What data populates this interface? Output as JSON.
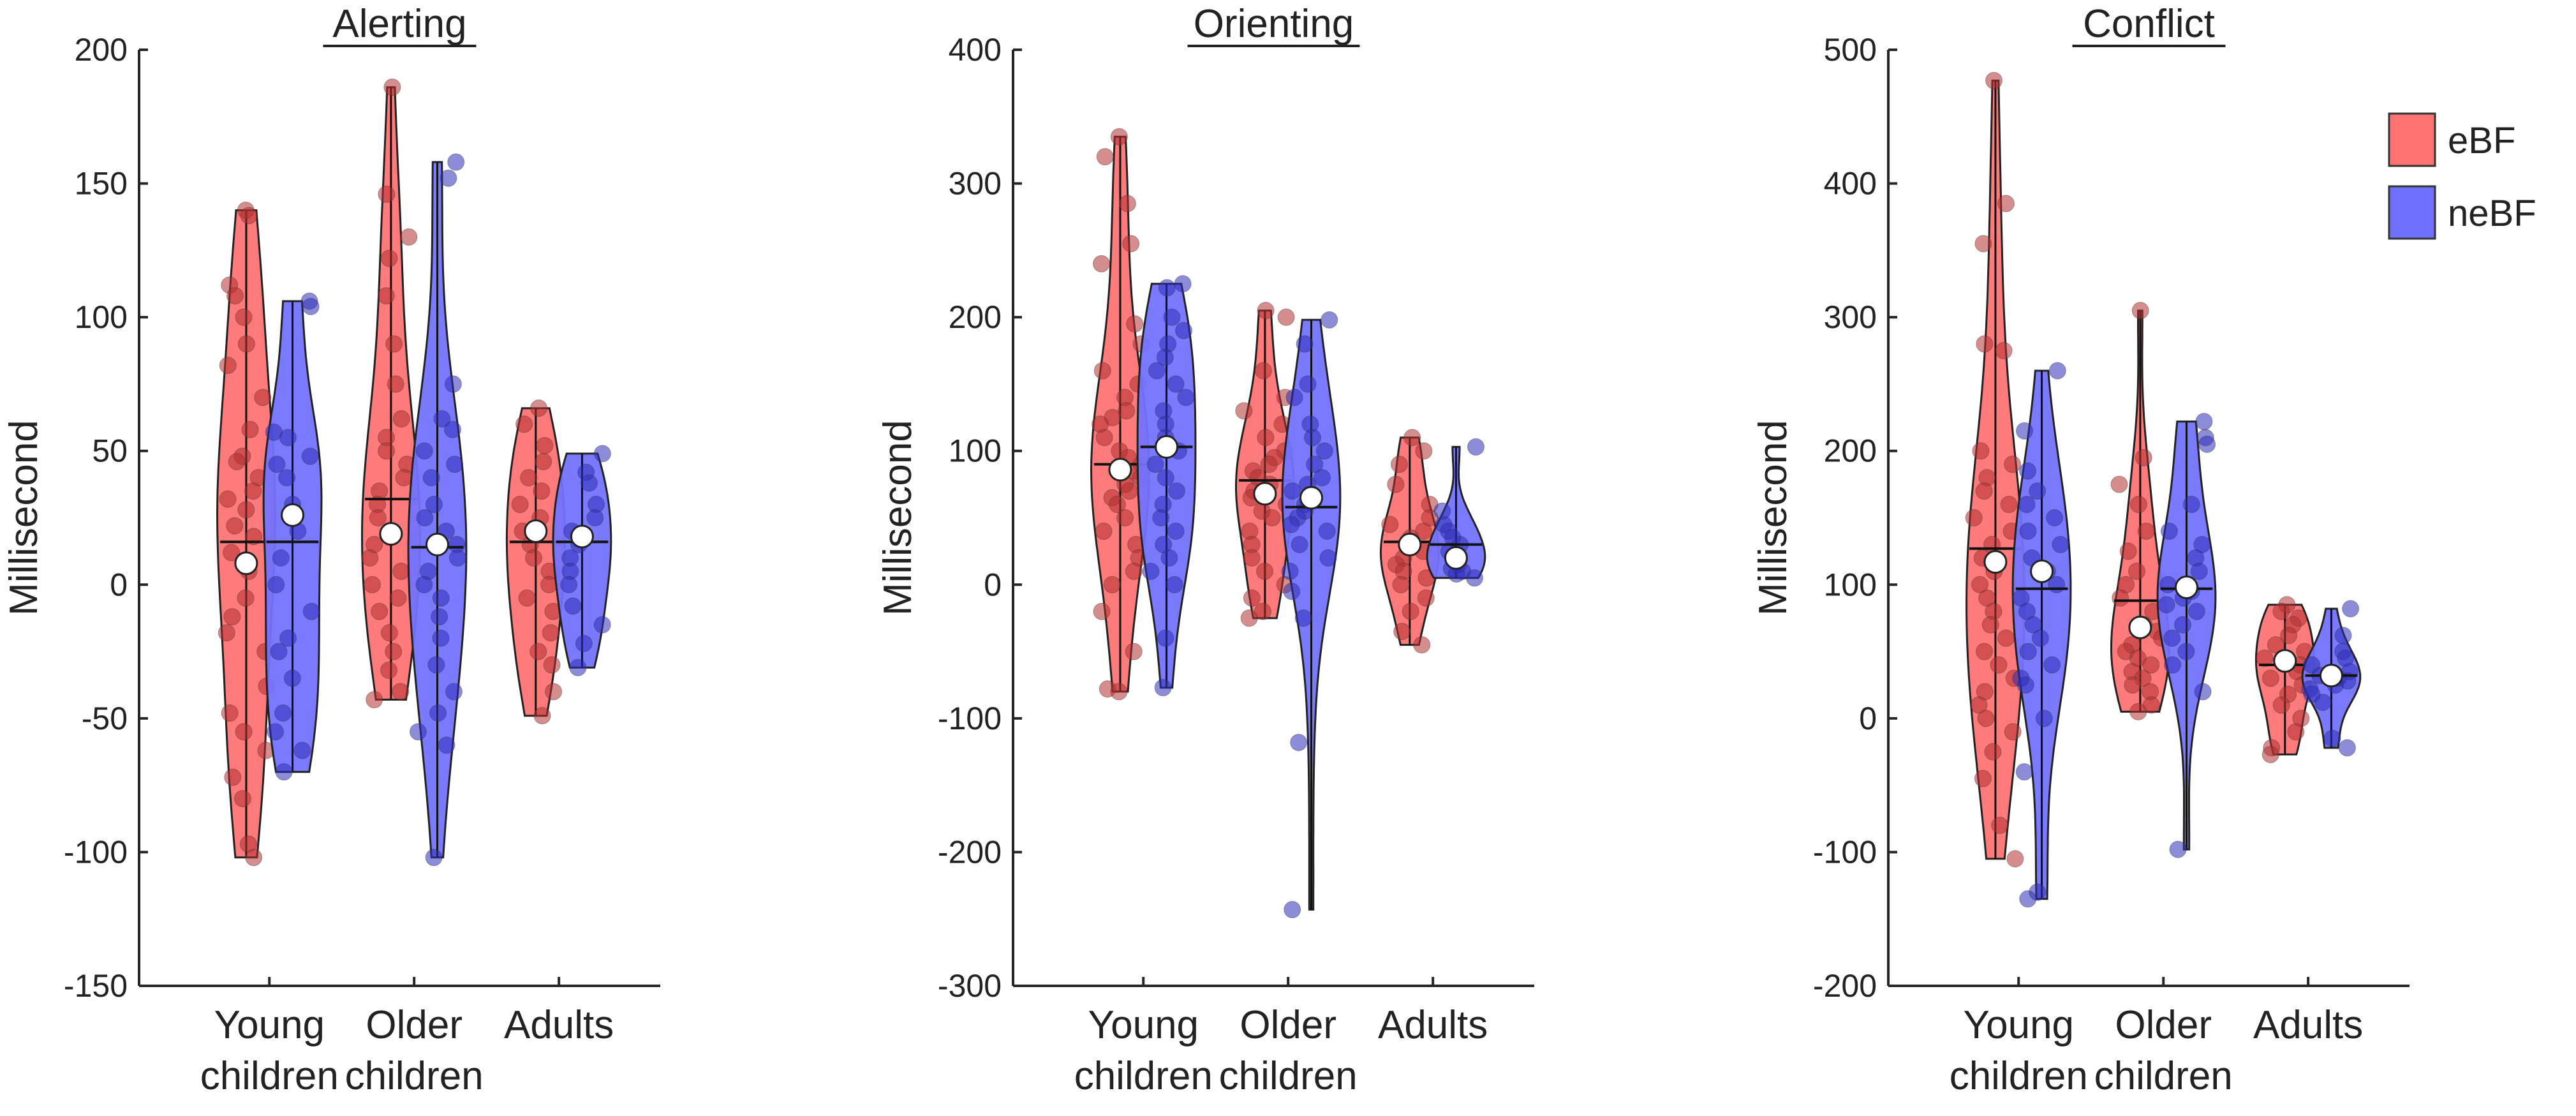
{
  "chart_data": [
    {
      "type": "violin",
      "title": "Alerting",
      "ylabel": "Millisecond",
      "xlabel": "",
      "ylim": [
        -150,
        200
      ],
      "yticks": [
        -150,
        -100,
        -50,
        0,
        50,
        100,
        150,
        200
      ],
      "categories": [
        {
          "line1": "Young",
          "line2": "children"
        },
        {
          "line1": "Older",
          "line2": "children"
        },
        {
          "line1": "Adults",
          "line2": ""
        }
      ],
      "series": [
        {
          "name": "eBF",
          "groups": [
            {
              "min": -102,
              "max": 140,
              "median": 16,
              "mean": 8,
              "points": [
                140,
                138,
                112,
                108,
                100,
                90,
                82,
                70,
                58,
                48,
                46,
                40,
                35,
                32,
                28,
                22,
                18,
                12,
                5,
                -5,
                -12,
                -18,
                -25,
                -38,
                -48,
                -55,
                -62,
                -72,
                -80,
                -97,
                -102
              ]
            },
            {
              "min": -43,
              "max": 186,
              "median": 32,
              "mean": 19,
              "points": [
                186,
                146,
                130,
                122,
                108,
                90,
                75,
                62,
                55,
                50,
                45,
                40,
                35,
                30,
                25,
                20,
                15,
                10,
                5,
                0,
                -5,
                -10,
                -18,
                -25,
                -32,
                -40,
                -43
              ]
            },
            {
              "min": -49,
              "max": 66,
              "median": 16,
              "mean": 20,
              "points": [
                66,
                60,
                52,
                46,
                40,
                35,
                30,
                25,
                20,
                15,
                10,
                5,
                0,
                -5,
                -10,
                -18,
                -25,
                -30,
                -40,
                -49
              ]
            }
          ]
        },
        {
          "name": "neBF",
          "groups": [
            {
              "min": -70,
              "max": 106,
              "median": 16,
              "mean": 26,
              "points": [
                106,
                104,
                57,
                55,
                48,
                45,
                40,
                30,
                20,
                10,
                0,
                -10,
                -20,
                -25,
                -35,
                -48,
                -55,
                -62,
                -70
              ]
            },
            {
              "min": -102,
              "max": 158,
              "median": 14,
              "mean": 15,
              "points": [
                158,
                152,
                75,
                62,
                58,
                50,
                45,
                40,
                30,
                25,
                20,
                15,
                10,
                5,
                0,
                -5,
                -12,
                -20,
                -30,
                -40,
                -48,
                -55,
                -60,
                -102
              ]
            },
            {
              "min": -31,
              "max": 49,
              "median": 16,
              "mean": 18,
              "points": [
                49,
                42,
                38,
                30,
                25,
                20,
                15,
                10,
                5,
                0,
                -8,
                -15,
                -22,
                -31
              ]
            }
          ]
        }
      ]
    },
    {
      "type": "violin",
      "title": "Orienting",
      "ylabel": "Millisecond",
      "xlabel": "",
      "ylim": [
        -300,
        400
      ],
      "yticks": [
        -300,
        -200,
        -100,
        0,
        100,
        200,
        300,
        400
      ],
      "categories": [
        {
          "line1": "Young",
          "line2": "children"
        },
        {
          "line1": "Older",
          "line2": "children"
        },
        {
          "line1": "Adults",
          "line2": ""
        }
      ],
      "series": [
        {
          "name": "eBF",
          "groups": [
            {
              "min": -80,
              "max": 335,
              "median": 90,
              "mean": 86,
              "points": [
                335,
                320,
                285,
                255,
                240,
                195,
                180,
                160,
                150,
                140,
                130,
                125,
                120,
                110,
                100,
                95,
                90,
                85,
                80,
                75,
                70,
                65,
                60,
                50,
                40,
                30,
                20,
                10,
                0,
                -20,
                -50,
                -78,
                -80
              ]
            },
            {
              "min": -25,
              "max": 205,
              "median": 78,
              "mean": 68,
              "points": [
                205,
                200,
                160,
                140,
                130,
                120,
                110,
                100,
                95,
                90,
                85,
                80,
                75,
                70,
                65,
                60,
                55,
                50,
                40,
                30,
                20,
                10,
                0,
                -10,
                -20,
                -25
              ]
            },
            {
              "min": -45,
              "max": 110,
              "median": 32,
              "mean": 30,
              "points": [
                110,
                100,
                90,
                75,
                60,
                50,
                45,
                40,
                35,
                30,
                25,
                20,
                15,
                10,
                5,
                0,
                -10,
                -20,
                -35,
                -45
              ]
            }
          ]
        },
        {
          "name": "neBF",
          "groups": [
            {
              "min": -77,
              "max": 225,
              "median": 103,
              "mean": 103,
              "points": [
                225,
                222,
                200,
                190,
                180,
                170,
                160,
                150,
                140,
                130,
                120,
                110,
                100,
                90,
                80,
                70,
                60,
                50,
                40,
                30,
                20,
                10,
                0,
                -40,
                -77
              ]
            },
            {
              "min": -243,
              "max": 198,
              "median": 58,
              "mean": 65,
              "points": [
                198,
                180,
                150,
                140,
                120,
                110,
                100,
                90,
                80,
                75,
                70,
                65,
                60,
                55,
                50,
                45,
                40,
                30,
                20,
                10,
                -5,
                -25,
                -118,
                -243
              ]
            },
            {
              "min": 5,
              "max": 103,
              "median": 30,
              "mean": 20,
              "points": [
                103,
                55,
                45,
                40,
                35,
                30,
                25,
                20,
                15,
                12,
                10,
                8,
                5
              ]
            }
          ]
        }
      ]
    },
    {
      "type": "violin",
      "title": "Conflict",
      "ylabel": "Millisecond",
      "xlabel": "",
      "ylim": [
        -200,
        500
      ],
      "yticks": [
        -200,
        -100,
        0,
        100,
        200,
        300,
        400,
        500
      ],
      "categories": [
        {
          "line1": "Young",
          "line2": "children"
        },
        {
          "line1": "Older",
          "line2": "children"
        },
        {
          "line1": "Adults",
          "line2": ""
        }
      ],
      "series": [
        {
          "name": "eBF",
          "groups": [
            {
              "min": -105,
              "max": 477,
              "median": 127,
              "mean": 117,
              "points": [
                477,
                385,
                355,
                280,
                275,
                200,
                190,
                180,
                170,
                160,
                150,
                140,
                130,
                120,
                110,
                100,
                90,
                80,
                70,
                60,
                50,
                40,
                30,
                20,
                10,
                0,
                -10,
                -25,
                -45,
                -80,
                -105
              ]
            },
            {
              "min": 5,
              "max": 305,
              "median": 88,
              "mean": 68,
              "points": [
                305,
                195,
                175,
                160,
                140,
                125,
                110,
                100,
                90,
                80,
                70,
                65,
                60,
                55,
                50,
                45,
                40,
                35,
                30,
                25,
                20,
                10,
                5
              ]
            },
            {
              "min": -27,
              "max": 85,
              "median": 40,
              "mean": 43,
              "points": [
                85,
                80,
                75,
                70,
                62,
                55,
                50,
                45,
                40,
                35,
                30,
                25,
                18,
                10,
                0,
                -10,
                -22,
                -27
              ]
            }
          ]
        },
        {
          "name": "neBF",
          "groups": [
            {
              "min": -135,
              "max": 260,
              "median": 97,
              "mean": 110,
              "points": [
                260,
                215,
                185,
                170,
                160,
                150,
                140,
                130,
                120,
                110,
                100,
                90,
                80,
                70,
                60,
                50,
                40,
                30,
                25,
                0,
                -40,
                -130,
                -135
              ]
            },
            {
              "min": -98,
              "max": 222,
              "median": 97,
              "mean": 98,
              "points": [
                222,
                210,
                205,
                160,
                140,
                130,
                120,
                110,
                100,
                95,
                90,
                85,
                80,
                70,
                60,
                50,
                40,
                20,
                -98
              ]
            },
            {
              "min": -22,
              "max": 82,
              "median": 32,
              "mean": 32,
              "points": [
                82,
                62,
                50,
                45,
                40,
                35,
                32,
                30,
                28,
                25,
                22,
                18,
                12,
                -15,
                -22
              ]
            }
          ]
        }
      ]
    }
  ],
  "legend": [
    {
      "label": "eBF",
      "color": "#ff7373"
    },
    {
      "label": "neBF",
      "color": "#7070ff"
    }
  ],
  "colors": {
    "eBF_fill": "#ff7373",
    "neBF_fill": "#7373ff",
    "eBF_point": "#b23030",
    "neBF_point": "#2d2db8",
    "axis": "#262626"
  }
}
